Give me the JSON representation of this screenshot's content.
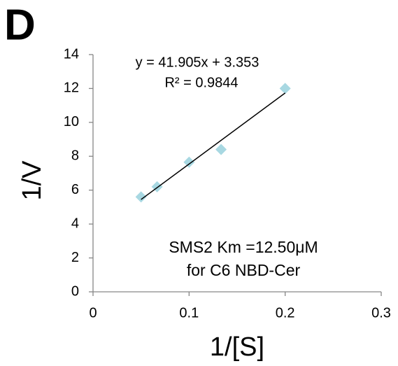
{
  "chart_data": {
    "type": "scatter",
    "panel_label": "D",
    "x_label": "1/[S]",
    "y_label": "1/V",
    "x": [
      0.05,
      0.0667,
      0.1,
      0.1333,
      0.2
    ],
    "values": [
      5.6,
      6.2,
      7.65,
      8.4,
      12.0
    ],
    "color": "#a8d8e2",
    "trendline": {
      "x": [
        0.05,
        0.2
      ],
      "y": [
        5.448,
        11.734
      ],
      "color": "#000000"
    },
    "equation": "y = 41.905x + 3.353",
    "r_squared": "R² = 0.9844",
    "annotation": [
      "SMS2 Km =12.50μM",
      "for C6 NBD-Cer"
    ],
    "xlim": [
      0,
      0.3
    ],
    "xticks": [
      0,
      0.1,
      0.2,
      0.3
    ],
    "ylim": [
      0,
      14
    ],
    "yticks": [
      0,
      2,
      4,
      6,
      8,
      10,
      12,
      14
    ]
  }
}
